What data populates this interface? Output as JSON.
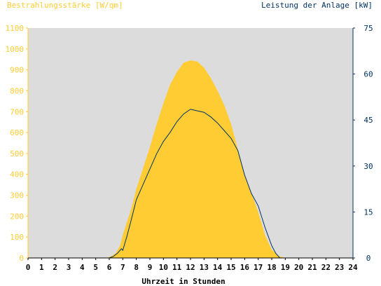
{
  "chart_data": {
    "type": "area",
    "title_left": "Bestrahlungsstärke [W/qm]",
    "title_right": "Leistung der Anlage [kW]",
    "xlabel": "Uhrzeit in Stunden",
    "xlim": [
      0,
      24
    ],
    "x_ticks": [
      0,
      1,
      2,
      3,
      4,
      5,
      6,
      7,
      8,
      9,
      10,
      11,
      12,
      13,
      14,
      15,
      16,
      17,
      18,
      19,
      20,
      21,
      22,
      23,
      24
    ],
    "ylim_left": [
      0,
      1100
    ],
    "y_ticks_left": [
      0,
      100,
      200,
      300,
      400,
      500,
      600,
      700,
      800,
      900,
      1000,
      1100
    ],
    "ylim_right": [
      0,
      75
    ],
    "y_ticks_right": [
      0,
      15,
      30,
      45,
      60,
      75
    ],
    "colors": {
      "plot_bg": "#dcdcdc",
      "irradiance": "#ffcc33",
      "power": "#003366",
      "left_axis": "#ffcc33",
      "right_axis": "#003366"
    },
    "series": [
      {
        "axis": "left",
        "style": "area",
        "x": [
          0,
          5.8,
          6.2,
          6.5,
          6.8,
          7.0,
          7.3,
          7.6,
          8.0,
          8.5,
          9.0,
          9.5,
          10.0,
          10.5,
          11.0,
          11.5,
          12.0,
          12.5,
          13.0,
          13.5,
          14.0,
          14.5,
          15.0,
          15.5,
          16.0,
          16.5,
          17.0,
          17.5,
          18.0,
          18.5,
          19.0,
          24
        ],
        "values": [
          0,
          0,
          10,
          25,
          60,
          110,
          170,
          230,
          330,
          430,
          530,
          640,
          740,
          830,
          890,
          935,
          945,
          940,
          910,
          860,
          800,
          730,
          640,
          520,
          400,
          310,
          220,
          110,
          40,
          10,
          0,
          0
        ]
      },
      {
        "axis": "right",
        "style": "line",
        "x": [
          0,
          6.0,
          6.3,
          6.6,
          6.9,
          7.0,
          7.1,
          7.3,
          7.6,
          8.0,
          8.5,
          9.0,
          9.5,
          10.0,
          10.5,
          11.0,
          11.5,
          12.0,
          12.5,
          13.0,
          13.5,
          14.0,
          14.5,
          15.0,
          15.5,
          16.0,
          16.5,
          17.0,
          17.5,
          18.0,
          18.3,
          18.6,
          24
        ],
        "values": [
          0,
          0,
          0.5,
          1.5,
          3.0,
          2.5,
          4.0,
          7.0,
          12,
          19,
          24,
          29,
          34,
          38,
          41,
          44.5,
          47,
          48.5,
          48,
          47.5,
          46,
          44,
          41.5,
          39,
          35,
          27,
          21,
          17,
          10,
          4,
          1.5,
          0,
          0
        ]
      }
    ]
  }
}
